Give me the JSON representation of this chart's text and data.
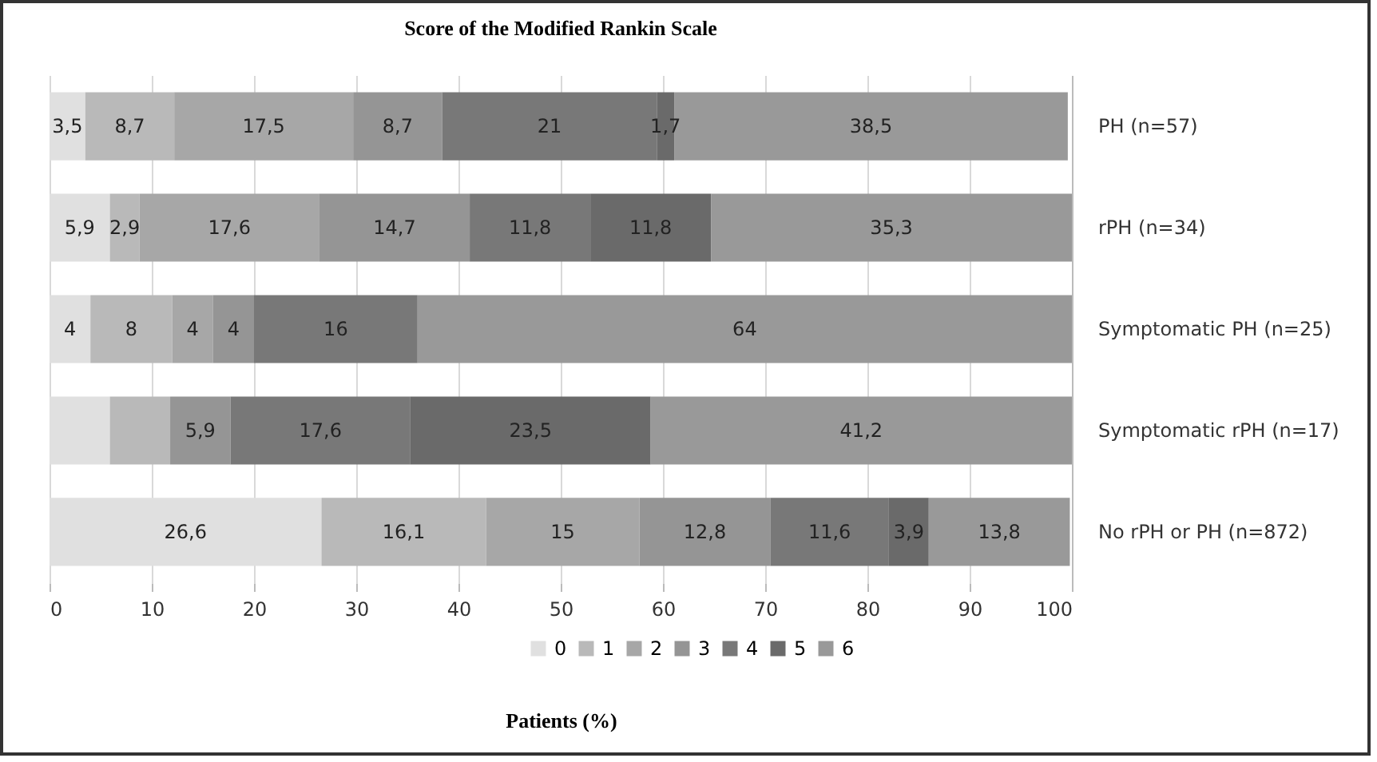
{
  "chart_data": {
    "type": "bar",
    "orientation": "horizontal",
    "stacked": true,
    "title": "Score of the Modified Rankin Scale",
    "xlabel": "Patients (%)",
    "categories": [
      "PH (n=57)",
      "rPH (n=34)",
      "Symptomatic PH (n=25)",
      "Symptomatic rPH (n=17)",
      "No rPH or PH (n=872)"
    ],
    "series": [
      {
        "name": "0",
        "color": "#e0e0e0",
        "values": [
          3.5,
          5.9,
          4,
          5.9,
          26.6
        ],
        "value_labels": [
          "3,5",
          "5,9",
          "4",
          null,
          "26,6"
        ]
      },
      {
        "name": "1",
        "color": "#b9b9b9",
        "values": [
          8.7,
          2.9,
          8,
          5.9,
          16.1
        ],
        "value_labels": [
          "8,7",
          "2,9",
          "8",
          null,
          "16,1"
        ]
      },
      {
        "name": "2",
        "color": "#a7a7a7",
        "values": [
          17.5,
          17.6,
          4,
          0,
          15
        ],
        "value_labels": [
          "17,5",
          "17,6",
          "4",
          null,
          "15"
        ]
      },
      {
        "name": "3",
        "color": "#959595",
        "values": [
          8.7,
          14.7,
          4,
          5.9,
          12.8
        ],
        "value_labels": [
          "8,7",
          "14,7",
          "4",
          "5,9",
          "12,8"
        ]
      },
      {
        "name": "4",
        "color": "#787878",
        "values": [
          21,
          11.8,
          16,
          17.6,
          11.6
        ],
        "value_labels": [
          "21",
          "11,8",
          "16",
          "17,6",
          "11,6"
        ]
      },
      {
        "name": "5",
        "color": "#6a6a6a",
        "values": [
          1.7,
          11.8,
          0,
          23.5,
          3.9
        ],
        "value_labels": [
          "1,7",
          "11,8",
          null,
          "23,5",
          "3,9"
        ]
      },
      {
        "name": "6",
        "color": "#999999",
        "values": [
          38.5,
          35.3,
          64,
          41.2,
          13.8
        ],
        "value_labels": [
          "38,5",
          "35,3",
          "64",
          "41,2",
          "13,8"
        ]
      }
    ],
    "xlim": [
      0,
      100
    ],
    "xticks": [
      0,
      10,
      20,
      30,
      40,
      50,
      60,
      70,
      80,
      90,
      100
    ],
    "grid": "x",
    "legend": "bottom"
  }
}
